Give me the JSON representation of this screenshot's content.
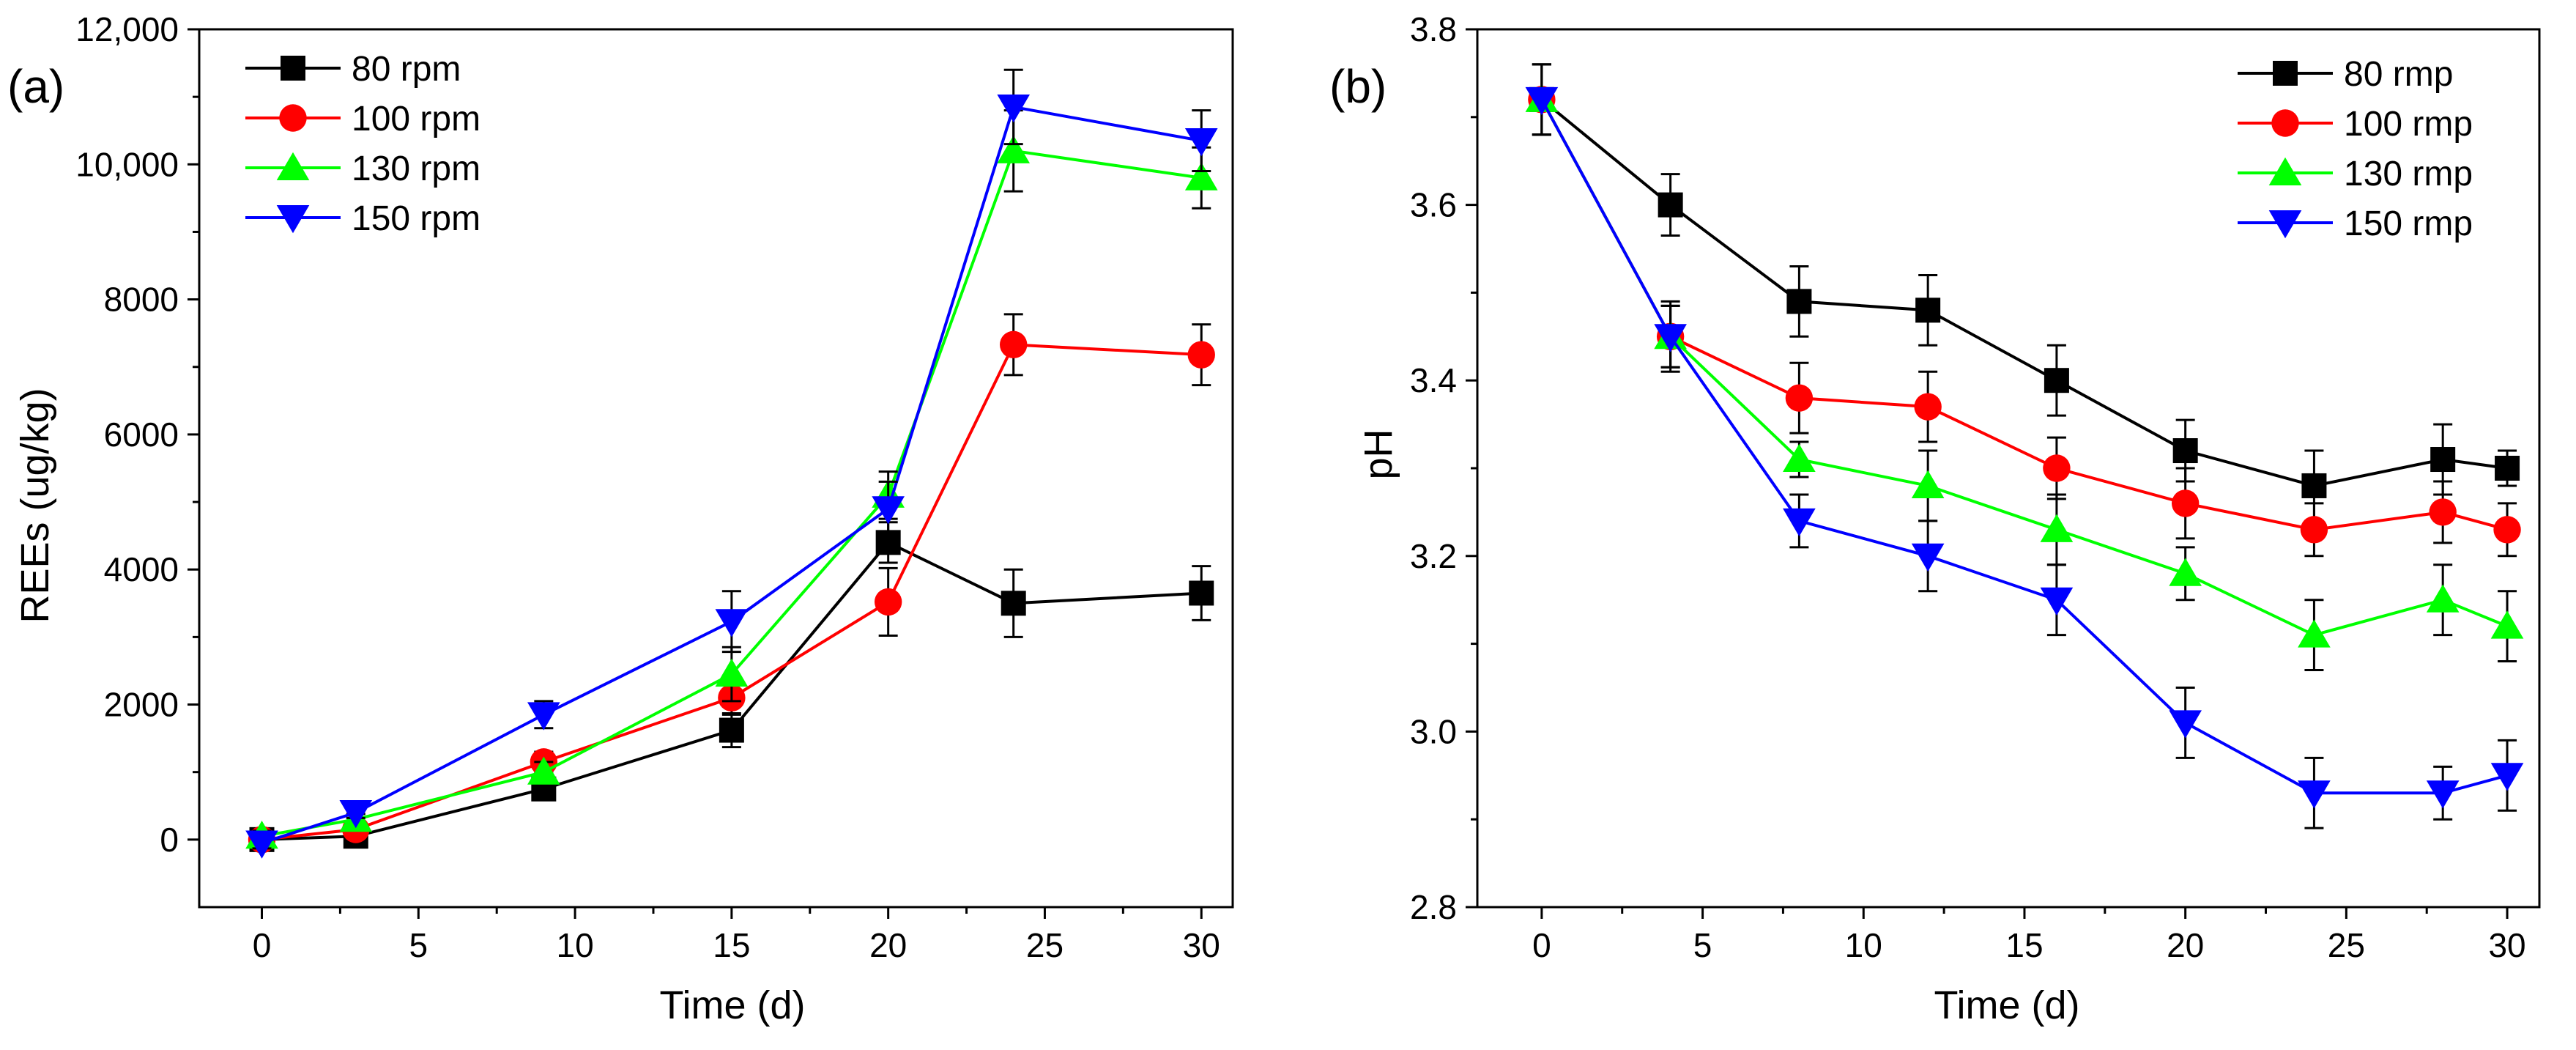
{
  "chart_data": [
    {
      "type": "line",
      "panel_label": "(a)",
      "xlabel": "Time (d)",
      "ylabel": "REEs (ug/kg)",
      "xlim": [
        -2,
        31
      ],
      "ylim": [
        -1000,
        12000
      ],
      "xticks": [
        0,
        5,
        10,
        15,
        20,
        25,
        30
      ],
      "xtick_labels": [
        "0",
        "5",
        "10",
        "15",
        "20",
        "25",
        "30"
      ],
      "yticks": [
        0,
        2000,
        4000,
        6000,
        8000,
        10000,
        12000
      ],
      "ytick_labels": [
        "0",
        "2000",
        "4000",
        "6000",
        "8000",
        "10,000",
        "12,000"
      ],
      "legend_position": "top-left",
      "series": [
        {
          "name": "80 rpm",
          "color": "#000000",
          "marker": "square",
          "x": [
            0,
            3,
            9,
            15,
            20,
            24,
            30
          ],
          "values": [
            0,
            50,
            750,
            1620,
            4400,
            3500,
            3650
          ],
          "errors": [
            80,
            80,
            150,
            250,
            300,
            500,
            400
          ]
        },
        {
          "name": "100 rpm",
          "color": "#ff0000",
          "marker": "circle",
          "x": [
            0,
            3,
            9,
            15,
            20,
            24,
            30
          ],
          "values": [
            0,
            150,
            1150,
            2100,
            3520,
            7330,
            7180
          ],
          "errors": [
            80,
            80,
            150,
            250,
            500,
            450,
            450
          ]
        },
        {
          "name": "130 rpm",
          "color": "#00ff00",
          "marker": "triangle-up",
          "x": [
            0,
            3,
            9,
            15,
            20,
            24,
            30
          ],
          "values": [
            50,
            300,
            1000,
            2450,
            5100,
            10200,
            9800
          ],
          "errors": [
            80,
            80,
            150,
            400,
            350,
            600,
            450
          ]
        },
        {
          "name": "150 rpm",
          "color": "#0000ff",
          "marker": "triangle-down",
          "x": [
            0,
            3,
            9,
            15,
            20,
            24,
            30
          ],
          "values": [
            -50,
            400,
            1850,
            3230,
            4900,
            10850,
            10350
          ],
          "errors": [
            80,
            80,
            200,
            450,
            400,
            550,
            450
          ]
        }
      ]
    },
    {
      "type": "line",
      "panel_label": "(b)",
      "xlabel": "Time (d)",
      "ylabel": "pH",
      "xlim": [
        -2,
        31
      ],
      "ylim": [
        2.8,
        3.8
      ],
      "xticks": [
        0,
        5,
        10,
        15,
        20,
        25,
        30
      ],
      "xtick_labels": [
        "0",
        "5",
        "10",
        "15",
        "20",
        "25",
        "30"
      ],
      "yticks": [
        2.8,
        3.0,
        3.2,
        3.4,
        3.6,
        3.8
      ],
      "ytick_labels": [
        "2.8",
        "3.0",
        "3.2",
        "3.4",
        "3.6",
        "3.8"
      ],
      "legend_position": "top-right",
      "series": [
        {
          "name": "80 rmp",
          "color": "#000000",
          "marker": "square",
          "x": [
            0,
            4,
            8,
            12,
            16,
            20,
            24,
            28,
            30
          ],
          "values": [
            3.72,
            3.6,
            3.49,
            3.48,
            3.4,
            3.32,
            3.28,
            3.31,
            3.3
          ],
          "errors": [
            0.04,
            0.035,
            0.04,
            0.04,
            0.04,
            0.035,
            0.04,
            0.04,
            0.02
          ]
        },
        {
          "name": "100 rmp",
          "color": "#ff0000",
          "marker": "circle",
          "x": [
            0,
            4,
            8,
            12,
            16,
            20,
            24,
            28,
            30
          ],
          "values": [
            3.72,
            3.45,
            3.38,
            3.37,
            3.3,
            3.26,
            3.23,
            3.25,
            3.23
          ],
          "errors": [
            0.04,
            0.035,
            0.04,
            0.04,
            0.035,
            0.04,
            0.03,
            0.035,
            0.03
          ]
        },
        {
          "name": "130 rmp",
          "color": "#00ff00",
          "marker": "triangle-up",
          "x": [
            0,
            4,
            8,
            12,
            16,
            20,
            24,
            28,
            30
          ],
          "values": [
            3.72,
            3.45,
            3.31,
            3.28,
            3.23,
            3.18,
            3.11,
            3.15,
            3.12
          ],
          "errors": [
            0.04,
            0.035,
            0.02,
            0.04,
            0.04,
            0.03,
            0.04,
            0.04,
            0.04
          ]
        },
        {
          "name": "150 rmp",
          "color": "#0000ff",
          "marker": "triangle-down",
          "x": [
            0,
            4,
            8,
            12,
            16,
            20,
            24,
            28,
            30
          ],
          "values": [
            3.72,
            3.45,
            3.24,
            3.2,
            3.15,
            3.01,
            2.93,
            2.93,
            2.95
          ],
          "errors": [
            0.04,
            0.04,
            0.03,
            0.04,
            0.04,
            0.04,
            0.04,
            0.03,
            0.04
          ]
        }
      ]
    }
  ]
}
